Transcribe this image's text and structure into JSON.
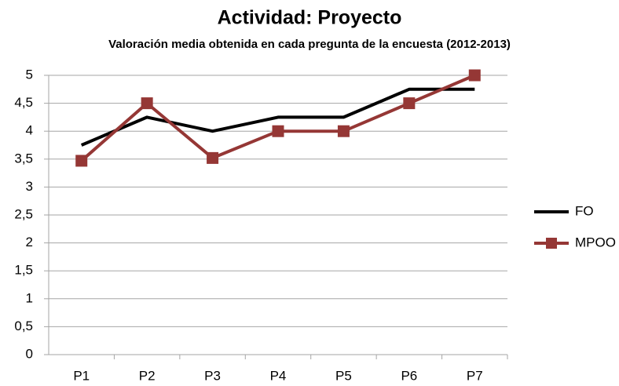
{
  "chart_data": {
    "type": "line",
    "title": "Actividad: Proyecto",
    "subtitle": "Valoración media obtenida en cada pregunta de la encuesta (2012-2013)",
    "categories": [
      "P1",
      "P2",
      "P3",
      "P4",
      "P5",
      "P6",
      "P7"
    ],
    "series": [
      {
        "name": "FO",
        "color": "#000000",
        "marker": "none",
        "values": [
          3.75,
          4.25,
          4.0,
          4.25,
          4.25,
          4.75,
          4.75
        ]
      },
      {
        "name": "MPOO",
        "color": "#953735",
        "marker": "square",
        "values": [
          3.47,
          4.5,
          3.52,
          4.0,
          4.0,
          4.5,
          5.0
        ]
      }
    ],
    "ylim": [
      0,
      5
    ],
    "yticks": [
      0,
      {
        "value": 0.5,
        "label": "0,5"
      },
      1,
      {
        "value": 1.5,
        "label": "1,5"
      },
      2,
      {
        "value": 2.5,
        "label": "2,5"
      },
      3,
      {
        "value": 3.5,
        "label": "3,5"
      },
      4,
      {
        "value": 4.5,
        "label": "4,5"
      },
      5
    ],
    "grid": true,
    "legend": "right"
  }
}
